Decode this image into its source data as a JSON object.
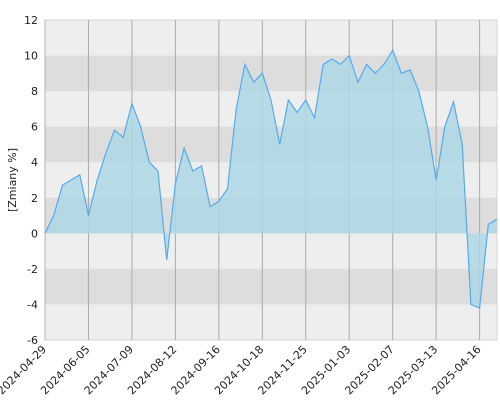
{
  "chart_data": {
    "type": "area",
    "y_label": "[Zmiany %]",
    "categories": [
      "2024-04-29",
      null,
      null,
      null,
      null,
      "2024-06-05",
      null,
      null,
      null,
      null,
      "2024-07-09",
      null,
      null,
      null,
      null,
      "2024-08-12",
      null,
      null,
      null,
      null,
      "2024-09-16",
      null,
      null,
      null,
      null,
      "2024-10-18",
      null,
      null,
      null,
      null,
      "2024-11-25",
      null,
      null,
      null,
      null,
      "2025-01-03",
      null,
      null,
      null,
      null,
      "2025-02-07",
      null,
      null,
      null,
      null,
      "2025-03-13",
      null,
      null,
      null,
      null,
      "2025-04-16",
      null,
      null
    ],
    "values": [
      0,
      1.0,
      2.7,
      3.0,
      3.3,
      1.0,
      3.0,
      4.5,
      5.8,
      5.4,
      7.3,
      6.0,
      4.0,
      3.5,
      -1.5,
      2.8,
      4.8,
      3.5,
      3.8,
      1.5,
      1.8,
      2.5,
      7.0,
      9.5,
      8.5,
      9.0,
      7.5,
      5.0,
      7.5,
      6.8,
      7.5,
      6.5,
      9.5,
      9.8,
      9.5,
      10.0,
      8.5,
      9.5,
      9.0,
      9.5,
      10.3,
      9.0,
      9.2,
      8.0,
      6.0,
      3.0,
      6.0,
      7.4,
      5.0,
      -4.0,
      -4.2,
      0.5,
      0.8
    ],
    "color": "#55aaee",
    "ylim": [
      -6,
      12
    ],
    "yticks": [
      -6,
      -4,
      -2,
      0,
      2,
      4,
      6,
      8,
      10,
      12
    ],
    "grid": true
  }
}
